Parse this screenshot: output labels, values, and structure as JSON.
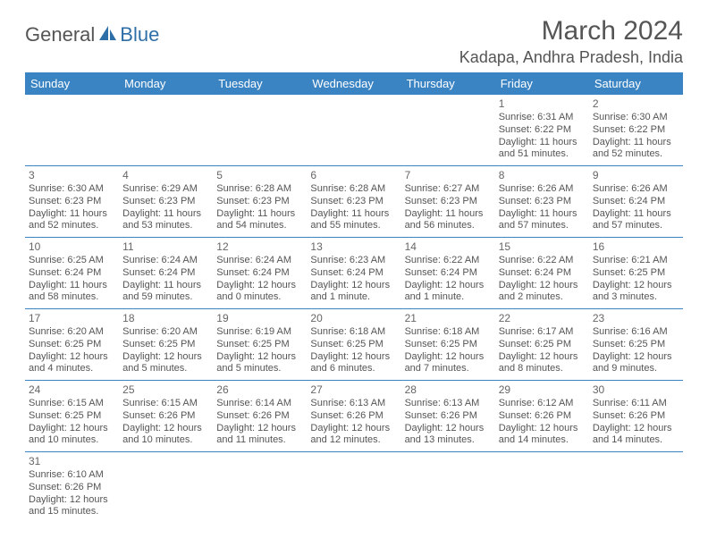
{
  "logo": {
    "general": "General",
    "blue": "Blue"
  },
  "title": "March 2024",
  "location": "Kadapa, Andhra Pradesh, India",
  "colors": {
    "header_bg": "#3b84c4",
    "header_text": "#ffffff",
    "cell_text": "#555555",
    "divider": "#3b84c4",
    "logo_gray": "#555555",
    "logo_blue": "#2f6fa8"
  },
  "day_headers": [
    "Sunday",
    "Monday",
    "Tuesday",
    "Wednesday",
    "Thursday",
    "Friday",
    "Saturday"
  ],
  "weeks": [
    [
      null,
      null,
      null,
      null,
      null,
      {
        "n": "1",
        "sr": "Sunrise: 6:31 AM",
        "ss": "Sunset: 6:22 PM",
        "dl1": "Daylight: 11 hours",
        "dl2": "and 51 minutes."
      },
      {
        "n": "2",
        "sr": "Sunrise: 6:30 AM",
        "ss": "Sunset: 6:22 PM",
        "dl1": "Daylight: 11 hours",
        "dl2": "and 52 minutes."
      }
    ],
    [
      {
        "n": "3",
        "sr": "Sunrise: 6:30 AM",
        "ss": "Sunset: 6:23 PM",
        "dl1": "Daylight: 11 hours",
        "dl2": "and 52 minutes."
      },
      {
        "n": "4",
        "sr": "Sunrise: 6:29 AM",
        "ss": "Sunset: 6:23 PM",
        "dl1": "Daylight: 11 hours",
        "dl2": "and 53 minutes."
      },
      {
        "n": "5",
        "sr": "Sunrise: 6:28 AM",
        "ss": "Sunset: 6:23 PM",
        "dl1": "Daylight: 11 hours",
        "dl2": "and 54 minutes."
      },
      {
        "n": "6",
        "sr": "Sunrise: 6:28 AM",
        "ss": "Sunset: 6:23 PM",
        "dl1": "Daylight: 11 hours",
        "dl2": "and 55 minutes."
      },
      {
        "n": "7",
        "sr": "Sunrise: 6:27 AM",
        "ss": "Sunset: 6:23 PM",
        "dl1": "Daylight: 11 hours",
        "dl2": "and 56 minutes."
      },
      {
        "n": "8",
        "sr": "Sunrise: 6:26 AM",
        "ss": "Sunset: 6:23 PM",
        "dl1": "Daylight: 11 hours",
        "dl2": "and 57 minutes."
      },
      {
        "n": "9",
        "sr": "Sunrise: 6:26 AM",
        "ss": "Sunset: 6:24 PM",
        "dl1": "Daylight: 11 hours",
        "dl2": "and 57 minutes."
      }
    ],
    [
      {
        "n": "10",
        "sr": "Sunrise: 6:25 AM",
        "ss": "Sunset: 6:24 PM",
        "dl1": "Daylight: 11 hours",
        "dl2": "and 58 minutes."
      },
      {
        "n": "11",
        "sr": "Sunrise: 6:24 AM",
        "ss": "Sunset: 6:24 PM",
        "dl1": "Daylight: 11 hours",
        "dl2": "and 59 minutes."
      },
      {
        "n": "12",
        "sr": "Sunrise: 6:24 AM",
        "ss": "Sunset: 6:24 PM",
        "dl1": "Daylight: 12 hours",
        "dl2": "and 0 minutes."
      },
      {
        "n": "13",
        "sr": "Sunrise: 6:23 AM",
        "ss": "Sunset: 6:24 PM",
        "dl1": "Daylight: 12 hours",
        "dl2": "and 1 minute."
      },
      {
        "n": "14",
        "sr": "Sunrise: 6:22 AM",
        "ss": "Sunset: 6:24 PM",
        "dl1": "Daylight: 12 hours",
        "dl2": "and 1 minute."
      },
      {
        "n": "15",
        "sr": "Sunrise: 6:22 AM",
        "ss": "Sunset: 6:24 PM",
        "dl1": "Daylight: 12 hours",
        "dl2": "and 2 minutes."
      },
      {
        "n": "16",
        "sr": "Sunrise: 6:21 AM",
        "ss": "Sunset: 6:25 PM",
        "dl1": "Daylight: 12 hours",
        "dl2": "and 3 minutes."
      }
    ],
    [
      {
        "n": "17",
        "sr": "Sunrise: 6:20 AM",
        "ss": "Sunset: 6:25 PM",
        "dl1": "Daylight: 12 hours",
        "dl2": "and 4 minutes."
      },
      {
        "n": "18",
        "sr": "Sunrise: 6:20 AM",
        "ss": "Sunset: 6:25 PM",
        "dl1": "Daylight: 12 hours",
        "dl2": "and 5 minutes."
      },
      {
        "n": "19",
        "sr": "Sunrise: 6:19 AM",
        "ss": "Sunset: 6:25 PM",
        "dl1": "Daylight: 12 hours",
        "dl2": "and 5 minutes."
      },
      {
        "n": "20",
        "sr": "Sunrise: 6:18 AM",
        "ss": "Sunset: 6:25 PM",
        "dl1": "Daylight: 12 hours",
        "dl2": "and 6 minutes."
      },
      {
        "n": "21",
        "sr": "Sunrise: 6:18 AM",
        "ss": "Sunset: 6:25 PM",
        "dl1": "Daylight: 12 hours",
        "dl2": "and 7 minutes."
      },
      {
        "n": "22",
        "sr": "Sunrise: 6:17 AM",
        "ss": "Sunset: 6:25 PM",
        "dl1": "Daylight: 12 hours",
        "dl2": "and 8 minutes."
      },
      {
        "n": "23",
        "sr": "Sunrise: 6:16 AM",
        "ss": "Sunset: 6:25 PM",
        "dl1": "Daylight: 12 hours",
        "dl2": "and 9 minutes."
      }
    ],
    [
      {
        "n": "24",
        "sr": "Sunrise: 6:15 AM",
        "ss": "Sunset: 6:25 PM",
        "dl1": "Daylight: 12 hours",
        "dl2": "and 10 minutes."
      },
      {
        "n": "25",
        "sr": "Sunrise: 6:15 AM",
        "ss": "Sunset: 6:26 PM",
        "dl1": "Daylight: 12 hours",
        "dl2": "and 10 minutes."
      },
      {
        "n": "26",
        "sr": "Sunrise: 6:14 AM",
        "ss": "Sunset: 6:26 PM",
        "dl1": "Daylight: 12 hours",
        "dl2": "and 11 minutes."
      },
      {
        "n": "27",
        "sr": "Sunrise: 6:13 AM",
        "ss": "Sunset: 6:26 PM",
        "dl1": "Daylight: 12 hours",
        "dl2": "and 12 minutes."
      },
      {
        "n": "28",
        "sr": "Sunrise: 6:13 AM",
        "ss": "Sunset: 6:26 PM",
        "dl1": "Daylight: 12 hours",
        "dl2": "and 13 minutes."
      },
      {
        "n": "29",
        "sr": "Sunrise: 6:12 AM",
        "ss": "Sunset: 6:26 PM",
        "dl1": "Daylight: 12 hours",
        "dl2": "and 14 minutes."
      },
      {
        "n": "30",
        "sr": "Sunrise: 6:11 AM",
        "ss": "Sunset: 6:26 PM",
        "dl1": "Daylight: 12 hours",
        "dl2": "and 14 minutes."
      }
    ],
    [
      {
        "n": "31",
        "sr": "Sunrise: 6:10 AM",
        "ss": "Sunset: 6:26 PM",
        "dl1": "Daylight: 12 hours",
        "dl2": "and 15 minutes."
      },
      null,
      null,
      null,
      null,
      null,
      null
    ]
  ]
}
